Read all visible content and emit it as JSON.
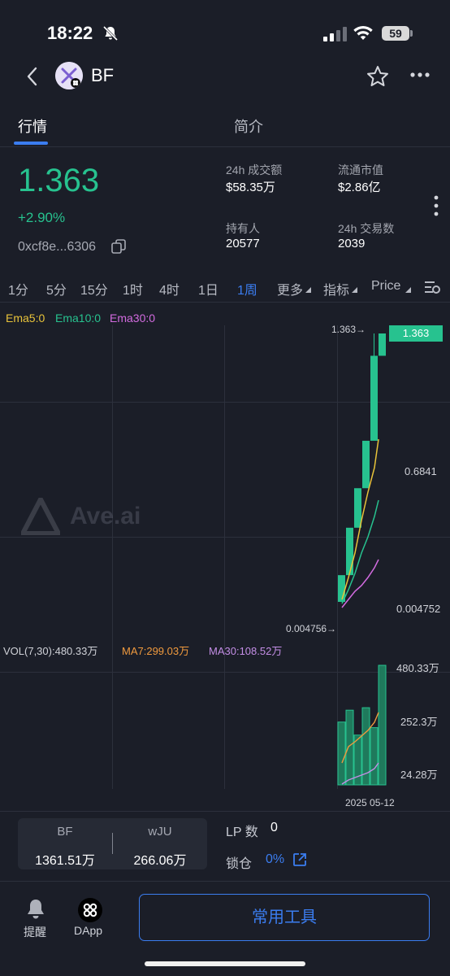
{
  "status_bar": {
    "time": "18:22",
    "battery": "59"
  },
  "header": {
    "token_name": "BF"
  },
  "tabs": [
    {
      "label": "行情",
      "active": true
    },
    {
      "label": "简介",
      "active": false
    }
  ],
  "summary": {
    "price": "1.363",
    "change": "+2.90%",
    "address": "0xcf8e...6306",
    "stats": [
      {
        "label": "24h 成交额",
        "value": "$58.35万"
      },
      {
        "label": "流通市值",
        "value": "$2.86亿"
      },
      {
        "label": "持有人",
        "value": "20577"
      },
      {
        "label": "24h 交易数",
        "value": "2039"
      }
    ]
  },
  "timeframes": [
    "1分",
    "5分",
    "15分",
    "1时",
    "4时",
    "1日",
    "1周",
    "更多",
    "指标",
    "Price"
  ],
  "active_timeframe": "1周",
  "ema_legend": {
    "ema5": "Ema5:0",
    "ema10": "Ema10:0",
    "ema30": "Ema30:0"
  },
  "chart_labels": {
    "high_marker": "1.363→",
    "current_price_tag": "1.363",
    "mid_price": "0.6841",
    "low_price_axis": "0.004752",
    "low_marker": "0.004756→"
  },
  "volume": {
    "legend": {
      "vol": "VOL(7,30):480.33万",
      "ma7": "MA7:299.03万",
      "ma30": "MA30:108.52万"
    },
    "axis": [
      "480.33万",
      "252.3万",
      "24.28万"
    ],
    "date_label": "2025 05-12"
  },
  "watermark": "Ave.ai",
  "chart_data": {
    "type": "candlestick",
    "candles": [
      {
        "open": 0.0048,
        "close": 0.14
      },
      {
        "open": 0.14,
        "close": 0.38
      },
      {
        "open": 0.38,
        "close": 0.58
      },
      {
        "open": 0.58,
        "close": 0.82
      },
      {
        "open": 0.82,
        "close": 1.25,
        "high": 1.363
      },
      {
        "open": 1.25,
        "close": 1.363
      }
    ],
    "volume_values_wan": [
      252.3,
      300,
      200,
      310,
      230,
      480.33
    ],
    "y_labels": [
      "1.363",
      "0.6841",
      "0.004752"
    ],
    "colors": {
      "up": "#27c28f",
      "ema5": "#e8c33a",
      "ema10": "#27c28f",
      "ema30": "#d36be0",
      "ma7": "#f09a3e",
      "ma30": "#c48ee6"
    }
  },
  "pool": {
    "token_a": "BF",
    "token_a_amount": "1361.51万",
    "token_b": "wJU",
    "token_b_amount": "266.06万",
    "lp_label": "LP 数",
    "lp_value": "0",
    "lock_label": "锁仓",
    "lock_value": "0%"
  },
  "bottom_nav": {
    "alert": "提醒",
    "dapp": "DApp",
    "tools_button": "常用工具"
  }
}
